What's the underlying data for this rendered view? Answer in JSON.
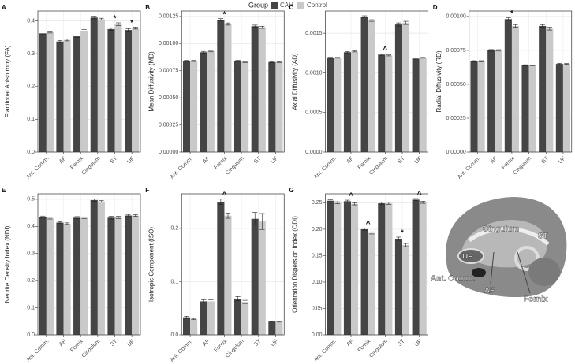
{
  "legend_title": "Group",
  "chart_data": [
    {
      "type": "bar",
      "label": "A",
      "ylabel": "Fractional Anisotropy (FA)",
      "categories": [
        "Ant. Comm.",
        "AF",
        "Fornix",
        "Cingulum",
        "ST",
        "UF"
      ],
      "series": [
        {
          "name": "CAH",
          "color": "#454545",
          "values": [
            0.362,
            0.337,
            0.353,
            0.41,
            0.375,
            0.372
          ],
          "errors": [
            0.004,
            0.003,
            0.004,
            0.004,
            0.004,
            0.004
          ]
        },
        {
          "name": "Control",
          "color": "#c9c9c9",
          "values": [
            0.366,
            0.342,
            0.37,
            0.405,
            0.39,
            0.378
          ],
          "errors": [
            0.003,
            0.003,
            0.004,
            0.003,
            0.004,
            0.003
          ]
        }
      ],
      "annotations": [
        null,
        null,
        null,
        null,
        "*",
        "*"
      ],
      "ylim": [
        0,
        0.43
      ],
      "yticks": [
        {
          "value": 0,
          "label": "0.0"
        },
        0.1,
        0.2,
        0.3,
        0.4
      ],
      "grid": true
    },
    {
      "type": "bar",
      "label": "B",
      "ylabel": "Mean Diffusivity (MD)",
      "categories": [
        "Ant. Comm.",
        "AF",
        "Fornix",
        "Cingulum",
        "ST",
        "UF"
      ],
      "series": [
        {
          "name": "CAH",
          "color": "#454545",
          "values": [
            0.00084,
            0.00092,
            0.00122,
            0.00084,
            0.00116,
            0.00083
          ],
          "errors": [
            5e-06,
            8e-06,
            1e-05,
            5e-06,
            1e-05,
            5e-06
          ]
        },
        {
          "name": "Control",
          "color": "#c9c9c9",
          "values": [
            0.00084,
            0.00093,
            0.00118,
            0.00083,
            0.00115,
            0.00083
          ],
          "errors": [
            5e-06,
            6e-06,
            1e-05,
            4e-06,
            1e-05,
            4e-06
          ]
        }
      ],
      "annotations": [
        null,
        null,
        "*",
        null,
        null,
        null
      ],
      "ylim": [
        0,
        0.0013
      ],
      "yticks": [
        {
          "value": 0,
          "label": "0.00000"
        },
        {
          "value": 0.00025,
          "label": "0.00025"
        },
        {
          "value": 0.0005,
          "label": "0.00050"
        },
        {
          "value": 0.00075,
          "label": "0.00075"
        },
        {
          "value": 0.001,
          "label": "0.00100"
        },
        {
          "value": 0.00125,
          "label": "0.00125"
        }
      ],
      "grid": true
    },
    {
      "type": "bar",
      "label": "C",
      "ylabel": "Axial Diffusivity (AD)",
      "categories": [
        "Ant. Comm.",
        "AF",
        "Fornix",
        "Cingulum",
        "ST",
        "UF"
      ],
      "series": [
        {
          "name": "CAH",
          "color": "#454545",
          "values": [
            0.00119,
            0.00126,
            0.00171,
            0.00123,
            0.00161,
            0.00118
          ],
          "errors": [
            6e-06,
            8e-06,
            1e-05,
            8e-06,
            2e-05,
            6e-06
          ]
        },
        {
          "name": "Control",
          "color": "#c9c9c9",
          "values": [
            0.00119,
            0.00127,
            0.00166,
            0.00122,
            0.00163,
            0.00119
          ],
          "errors": [
            5e-06,
            6e-06,
            1e-05,
            6e-06,
            2e-05,
            5e-06
          ]
        }
      ],
      "annotations": [
        null,
        null,
        null,
        "^",
        null,
        null
      ],
      "ylim": [
        0,
        0.00178
      ],
      "yticks": [
        {
          "value": 0,
          "label": "0.0000"
        },
        {
          "value": 0.0005,
          "label": "0.0005"
        },
        {
          "value": 0.001,
          "label": "0.0010"
        },
        {
          "value": 0.0015,
          "label": "0.0015"
        }
      ],
      "grid": true
    },
    {
      "type": "bar",
      "label": "D",
      "ylabel": "Radial Diffusivity (RD)",
      "categories": [
        "Ant. Comm.",
        "AF",
        "Fornix",
        "Cingulum",
        "ST",
        "UF"
      ],
      "series": [
        {
          "name": "CAH",
          "color": "#454545",
          "values": [
            0.00067,
            0.00075,
            0.00098,
            0.00064,
            0.00093,
            0.00065
          ],
          "errors": [
            4e-06,
            6e-06,
            1e-05,
            4e-06,
            1e-05,
            4e-06
          ]
        },
        {
          "name": "Control",
          "color": "#c9c9c9",
          "values": [
            0.00067,
            0.00075,
            0.00093,
            0.00064,
            0.00091,
            0.00065
          ],
          "errors": [
            4e-06,
            5e-06,
            1e-05,
            3e-06,
            1e-05,
            3e-06
          ]
        }
      ],
      "annotations": [
        null,
        null,
        "*",
        null,
        null,
        null
      ],
      "ylim": [
        0,
        0.00104
      ],
      "yticks": [
        {
          "value": 0,
          "label": "0.00000"
        },
        {
          "value": 0.00025,
          "label": "0.00025"
        },
        {
          "value": 0.0005,
          "label": "0.00050"
        },
        {
          "value": 0.00075,
          "label": "0.00075"
        },
        {
          "value": 0.001,
          "label": "0.00100"
        }
      ],
      "grid": true
    },
    {
      "type": "bar",
      "label": "E",
      "ylabel": "Neurite Density Index (NDI)",
      "categories": [
        "Ant. Comm.",
        "AF",
        "Fornix",
        "Cingulum",
        "ST",
        "UF"
      ],
      "series": [
        {
          "name": "CAH",
          "color": "#454545",
          "values": [
            0.434,
            0.414,
            0.432,
            0.497,
            0.432,
            0.44
          ],
          "errors": [
            0.004,
            0.003,
            0.004,
            0.004,
            0.005,
            0.004
          ]
        },
        {
          "name": "Control",
          "color": "#c9c9c9",
          "values": [
            0.43,
            0.41,
            0.432,
            0.492,
            0.433,
            0.44
          ],
          "errors": [
            0.003,
            0.003,
            0.003,
            0.003,
            0.004,
            0.003
          ]
        }
      ],
      "annotations": [
        null,
        null,
        null,
        null,
        null,
        null
      ],
      "ylim": [
        0,
        0.52
      ],
      "yticks": [
        {
          "value": 0,
          "label": "0.0"
        },
        0.1,
        0.2,
        0.3,
        0.4,
        0.5
      ],
      "grid": true
    },
    {
      "type": "bar",
      "label": "F",
      "ylabel": "Isotropic Component (ISO)",
      "categories": [
        "Ant. Comm.",
        "AF",
        "Fornix",
        "Cingulum",
        "ST",
        "UF"
      ],
      "series": [
        {
          "name": "CAH",
          "color": "#454545",
          "values": [
            0.033,
            0.063,
            0.25,
            0.068,
            0.218,
            0.025
          ],
          "errors": [
            0.002,
            0.003,
            0.005,
            0.004,
            0.012,
            0.001
          ]
        },
        {
          "name": "Control",
          "color": "#c9c9c9",
          "values": [
            0.03,
            0.063,
            0.224,
            0.062,
            0.213,
            0.025
          ],
          "errors": [
            0.001,
            0.003,
            0.005,
            0.003,
            0.015,
            0.001
          ]
        }
      ],
      "annotations": [
        null,
        null,
        "^",
        null,
        null,
        null
      ],
      "ylim": [
        0,
        0.265
      ],
      "yticks": [
        {
          "value": 0,
          "label": "0.0"
        },
        0.1,
        0.2
      ],
      "grid": true
    },
    {
      "type": "bar",
      "label": "G",
      "ylabel": "Orientation Dispersion Index (ODI)",
      "categories": [
        "Ant. Comm.",
        "AF",
        "Fornix",
        "Cingulum",
        "ST",
        "UF"
      ],
      "series": [
        {
          "name": "CAH",
          "color": "#454545",
          "values": [
            0.254,
            0.253,
            0.2,
            0.249,
            0.182,
            0.256
          ],
          "errors": [
            0.002,
            0.002,
            0.002,
            0.002,
            0.003,
            0.002
          ]
        },
        {
          "name": "Control",
          "color": "#c9c9c9",
          "values": [
            0.25,
            0.248,
            0.193,
            0.249,
            0.17,
            0.251
          ],
          "errors": [
            0.002,
            0.002,
            0.002,
            0.002,
            0.003,
            0.002
          ]
        }
      ],
      "annotations": [
        null,
        "^",
        "^",
        null,
        "*",
        "^"
      ],
      "ylim": [
        0,
        0.267
      ],
      "yticks": [
        {
          "value": 0,
          "label": "0.00"
        },
        0.05,
        {
          "value": 0.1,
          "label": "0.10"
        },
        0.15,
        {
          "value": 0.2,
          "label": "0.20"
        },
        0.25
      ],
      "grid": true
    }
  ],
  "image": {
    "labels": [
      "Cingulum",
      "ST",
      "UF",
      "Ant. Comm.",
      "AF",
      "Fornix"
    ]
  }
}
